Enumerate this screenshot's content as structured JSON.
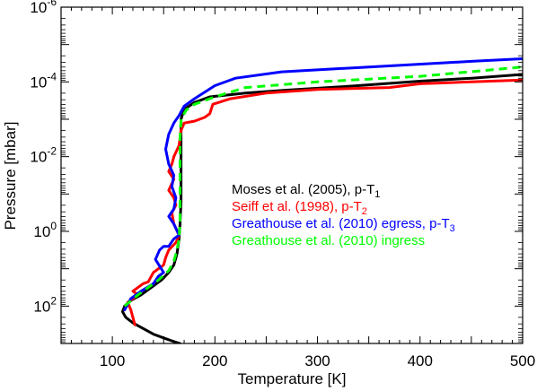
{
  "chart_data": {
    "type": "line",
    "title": "",
    "xlabel": "Temperature [K]",
    "ylabel": "Pressure [mbar]",
    "xlim": [
      50,
      500
    ],
    "ylim_log10": [
      3,
      -6
    ],
    "y_scale": "log",
    "y_inverted": true,
    "grid": false,
    "legend_position": "center-right",
    "x_ticks": [
      {
        "value": 100,
        "label": "100"
      },
      {
        "value": 200,
        "label": "200"
      },
      {
        "value": 300,
        "label": "300"
      },
      {
        "value": 400,
        "label": "400"
      },
      {
        "value": 500,
        "label": "500"
      }
    ],
    "y_ticks": [
      {
        "exp": -6,
        "base": "10",
        "sup": "-6"
      },
      {
        "exp": -4,
        "base": "10",
        "sup": "-4"
      },
      {
        "exp": -2,
        "base": "10",
        "sup": "-2"
      },
      {
        "exp": 0,
        "base": "10",
        "sup": "0"
      },
      {
        "exp": 2,
        "base": "10",
        "sup": "2"
      }
    ],
    "series": [
      {
        "name_main": "Moses et al. (2005), p-T",
        "name_sub": "1",
        "color": "#000000",
        "dash": false,
        "points": [
          [
            166,
            3
          ],
          [
            160,
            2.95
          ],
          [
            150,
            2.85
          ],
          [
            140,
            2.75
          ],
          [
            130,
            2.6
          ],
          [
            120,
            2.45
          ],
          [
            113,
            2.3
          ],
          [
            110,
            2.15
          ],
          [
            112,
            2.0
          ],
          [
            118,
            1.85
          ],
          [
            128,
            1.7
          ],
          [
            138,
            1.5
          ],
          [
            148,
            1.3
          ],
          [
            155,
            1.1
          ],
          [
            160,
            0.9
          ],
          [
            163,
            0.6
          ],
          [
            165,
            0.2
          ],
          [
            166,
            -0.2
          ],
          [
            167,
            -0.8
          ],
          [
            167,
            -1.3
          ],
          [
            167,
            -1.8
          ],
          [
            167,
            -2.5
          ],
          [
            167,
            -3.0
          ],
          [
            168,
            -3.1
          ],
          [
            172,
            -3.3
          ],
          [
            180,
            -3.45
          ],
          [
            195,
            -3.6
          ],
          [
            230,
            -3.7
          ],
          [
            270,
            -3.78
          ],
          [
            330,
            -3.88
          ],
          [
            400,
            -4.02
          ],
          [
            450,
            -4.1
          ],
          [
            500,
            -4.2
          ]
        ]
      },
      {
        "name_main": "Seiff et al. (1998), p-T",
        "name_sub": "2",
        "color": "#ff0000",
        "dash": false,
        "points": [
          [
            122,
            2.5
          ],
          [
            118,
            2.1
          ],
          [
            115,
            1.9
          ],
          [
            125,
            1.7
          ],
          [
            120,
            1.6
          ],
          [
            130,
            1.4
          ],
          [
            135,
            1.35
          ],
          [
            140,
            1.1
          ],
          [
            150,
            0.9
          ],
          [
            152,
            0.7
          ],
          [
            155,
            0.5
          ],
          [
            162,
            0.3
          ],
          [
            165,
            0.1
          ],
          [
            160,
            -0.2
          ],
          [
            158,
            -0.5
          ],
          [
            162,
            -0.7
          ],
          [
            160,
            -0.9
          ],
          [
            155,
            -1.1
          ],
          [
            160,
            -1.4
          ],
          [
            155,
            -1.6
          ],
          [
            158,
            -1.8
          ],
          [
            160,
            -2.0
          ],
          [
            165,
            -2.3
          ],
          [
            167,
            -2.7
          ],
          [
            170,
            -2.9
          ],
          [
            180,
            -2.95
          ],
          [
            190,
            -3.05
          ],
          [
            195,
            -3.15
          ],
          [
            198,
            -3.4
          ],
          [
            215,
            -3.55
          ],
          [
            250,
            -3.7
          ],
          [
            300,
            -3.8
          ],
          [
            370,
            -3.85
          ],
          [
            400,
            -3.95
          ],
          [
            450,
            -4.0
          ],
          [
            500,
            -4.05
          ]
        ]
      },
      {
        "name_main": "Greathouse et al. (2010) egress, p-T",
        "name_sub": "3",
        "color": "#0000ff",
        "dash": false,
        "points": [
          [
            112,
            2.1
          ],
          [
            118,
            1.8
          ],
          [
            128,
            1.6
          ],
          [
            140,
            1.4
          ],
          [
            145,
            1.2
          ],
          [
            150,
            1.1
          ],
          [
            142,
            0.75
          ],
          [
            146,
            0.5
          ],
          [
            150,
            0.4
          ],
          [
            155,
            0.4
          ],
          [
            160,
            0.2
          ],
          [
            165,
            0.1
          ],
          [
            160,
            -0.2
          ],
          [
            155,
            -0.4
          ],
          [
            160,
            -0.6
          ],
          [
            162,
            -0.9
          ],
          [
            158,
            -1.2
          ],
          [
            160,
            -1.5
          ],
          [
            155,
            -1.8
          ],
          [
            152,
            -2.2
          ],
          [
            155,
            -2.6
          ],
          [
            160,
            -2.9
          ],
          [
            165,
            -3.1
          ],
          [
            170,
            -3.35
          ],
          [
            180,
            -3.55
          ],
          [
            200,
            -3.9
          ],
          [
            220,
            -4.1
          ],
          [
            265,
            -4.27
          ],
          [
            350,
            -4.4
          ],
          [
            450,
            -4.55
          ],
          [
            500,
            -4.62
          ]
        ]
      },
      {
        "name_main": "Greathouse et al. (2010) ingress",
        "name_sub": "",
        "color": "#00ff00",
        "dash": true,
        "points": [
          [
            112,
            2.0
          ],
          [
            125,
            1.7
          ],
          [
            135,
            1.5
          ],
          [
            145,
            1.3
          ],
          [
            155,
            1.05
          ],
          [
            160,
            0.8
          ],
          [
            163,
            0.5
          ],
          [
            165,
            0.2
          ],
          [
            166,
            -0.3
          ],
          [
            166,
            -1.0
          ],
          [
            166,
            -1.8
          ],
          [
            166,
            -2.5
          ],
          [
            167,
            -3.0
          ],
          [
            172,
            -3.25
          ],
          [
            180,
            -3.4
          ],
          [
            200,
            -3.6
          ],
          [
            230,
            -3.85
          ],
          [
            300,
            -4.0
          ],
          [
            400,
            -4.15
          ],
          [
            500,
            -4.4
          ]
        ]
      }
    ]
  }
}
